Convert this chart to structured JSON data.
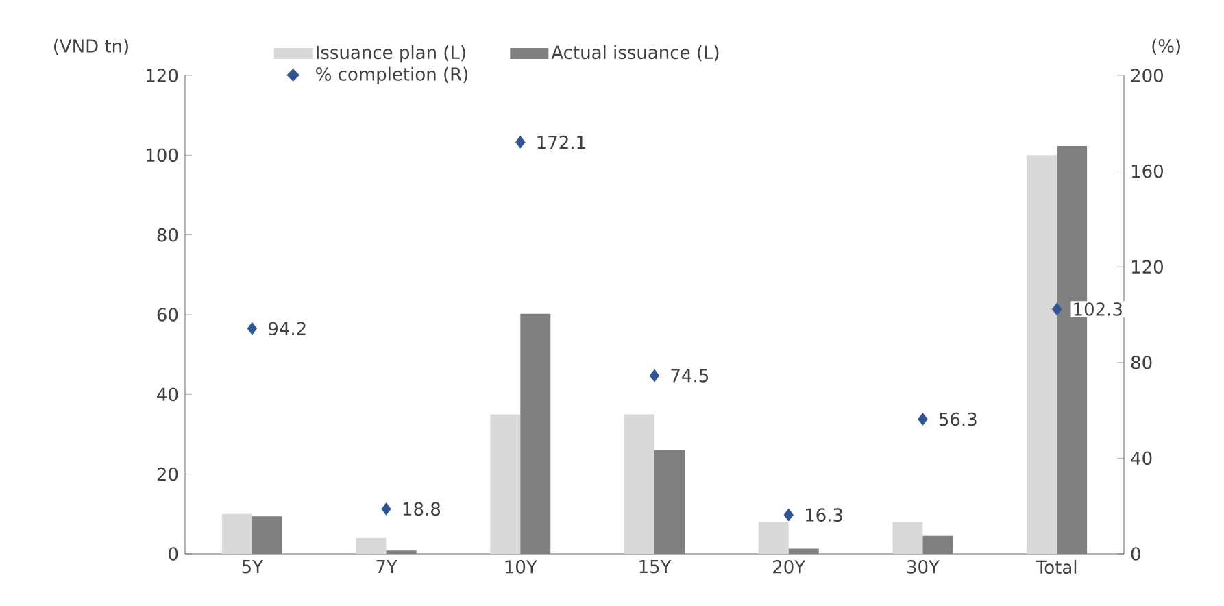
{
  "chart_data": {
    "type": "bar",
    "ylabel": "(VND tn)",
    "y2label": "(%)",
    "categories": [
      "5Y",
      "7Y",
      "10Y",
      "15Y",
      "20Y",
      "30Y",
      "Total"
    ],
    "series": [
      {
        "name": "Issuance plan (L)",
        "color": "#d9d9d9",
        "values": [
          10,
          4,
          35,
          35,
          8,
          8,
          100
        ]
      },
      {
        "name": "Actual issuance (L)",
        "color": "#808080",
        "values": [
          9.4,
          0.8,
          60.2,
          26.1,
          1.3,
          4.5,
          102.3
        ]
      },
      {
        "name": "% completion (R)",
        "type": "scatter",
        "axis": "y2",
        "color": "#2f5597",
        "marker": "diamond",
        "values": [
          94.2,
          18.8,
          172.1,
          74.5,
          16.3,
          56.3,
          102.3
        ],
        "value_labels": [
          "94.2",
          "18.8",
          "172.1",
          "74.5",
          "16.3",
          "56.3",
          "102.3"
        ]
      }
    ],
    "ylim": [
      0,
      120
    ],
    "yticks": [
      0,
      20,
      40,
      60,
      80,
      100,
      120
    ],
    "y2lim": [
      0,
      200
    ],
    "y2ticks": [
      0,
      40,
      80,
      120,
      160,
      200
    ],
    "legend": "top",
    "grid": false
  }
}
